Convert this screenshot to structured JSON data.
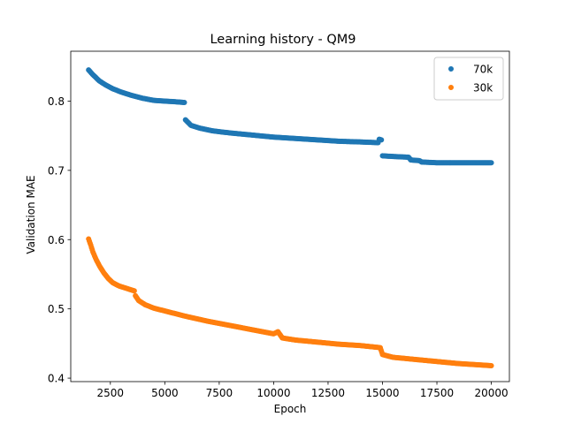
{
  "chart_data": {
    "type": "scatter",
    "title": "Learning history - QM9",
    "xlabel": "Epoch",
    "ylabel": "Validation MAE",
    "xlim": [
      680,
      20830
    ],
    "ylim": [
      0.395,
      0.872
    ],
    "xticks": [
      2500,
      5000,
      7500,
      10000,
      12500,
      15000,
      17500,
      20000
    ],
    "xtick_labels": [
      "2500",
      "5000",
      "7500",
      "10000",
      "12500",
      "15000",
      "17500",
      "20000"
    ],
    "yticks": [
      0.4,
      0.5,
      0.6,
      0.7,
      0.8
    ],
    "ytick_labels": [
      "0.4",
      "0.5",
      "0.6",
      "0.7",
      "0.8"
    ],
    "grid": false,
    "legend_position": "top-right",
    "series": [
      {
        "name": "70k",
        "color": "#1f77b4",
        "points": [
          [
            1500,
            0.845
          ],
          [
            1700,
            0.838
          ],
          [
            2000,
            0.829
          ],
          [
            2300,
            0.823
          ],
          [
            2600,
            0.818
          ],
          [
            3000,
            0.813
          ],
          [
            3500,
            0.808
          ],
          [
            4000,
            0.804
          ],
          [
            4500,
            0.801
          ],
          [
            5000,
            0.8
          ],
          [
            5500,
            0.799
          ],
          [
            5900,
            0.798
          ],
          [
            5950,
            0.773
          ],
          [
            6200,
            0.765
          ],
          [
            6600,
            0.761
          ],
          [
            7200,
            0.757
          ],
          [
            8000,
            0.754
          ],
          [
            9000,
            0.751
          ],
          [
            10000,
            0.748
          ],
          [
            11000,
            0.746
          ],
          [
            12000,
            0.744
          ],
          [
            13000,
            0.742
          ],
          [
            14000,
            0.741
          ],
          [
            14800,
            0.74
          ],
          [
            14850,
            0.745
          ],
          [
            14950,
            0.744
          ],
          [
            15000,
            0.721
          ],
          [
            15500,
            0.72
          ],
          [
            16200,
            0.719
          ],
          [
            16300,
            0.715
          ],
          [
            16700,
            0.714
          ],
          [
            16800,
            0.712
          ],
          [
            17500,
            0.711
          ],
          [
            18500,
            0.711
          ],
          [
            19500,
            0.711
          ],
          [
            20000,
            0.711
          ]
        ]
      },
      {
        "name": "30k",
        "color": "#ff7f0e",
        "points": [
          [
            1500,
            0.601
          ],
          [
            1600,
            0.592
          ],
          [
            1700,
            0.582
          ],
          [
            1850,
            0.571
          ],
          [
            2000,
            0.562
          ],
          [
            2200,
            0.552
          ],
          [
            2400,
            0.544
          ],
          [
            2600,
            0.538
          ],
          [
            2900,
            0.533
          ],
          [
            3300,
            0.529
          ],
          [
            3600,
            0.526
          ],
          [
            3650,
            0.519
          ],
          [
            3800,
            0.512
          ],
          [
            4100,
            0.506
          ],
          [
            4500,
            0.501
          ],
          [
            5000,
            0.497
          ],
          [
            5500,
            0.493
          ],
          [
            6000,
            0.489
          ],
          [
            7000,
            0.482
          ],
          [
            8000,
            0.476
          ],
          [
            9000,
            0.47
          ],
          [
            10000,
            0.464
          ],
          [
            10200,
            0.467
          ],
          [
            10400,
            0.458
          ],
          [
            11000,
            0.455
          ],
          [
            12000,
            0.452
          ],
          [
            13000,
            0.449
          ],
          [
            14000,
            0.447
          ],
          [
            14900,
            0.444
          ],
          [
            15000,
            0.434
          ],
          [
            15500,
            0.43
          ],
          [
            16500,
            0.427
          ],
          [
            17500,
            0.424
          ],
          [
            18500,
            0.421
          ],
          [
            19500,
            0.419
          ],
          [
            20000,
            0.418
          ]
        ]
      }
    ]
  }
}
